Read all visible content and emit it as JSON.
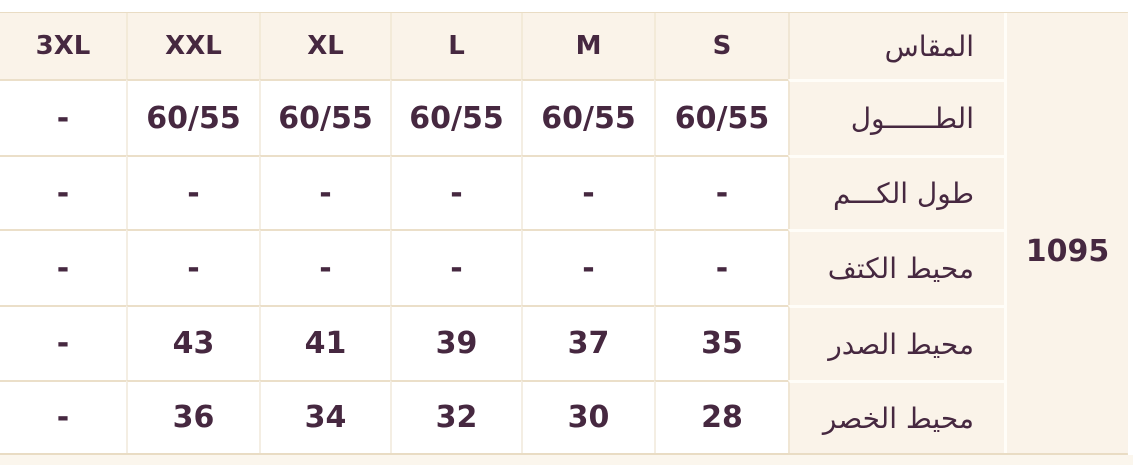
{
  "table": {
    "size_label": "المقاس",
    "sizes": [
      "3XL",
      "XXL",
      "XL",
      "L",
      "M",
      "S"
    ],
    "rows": [
      {
        "label": "الطــــــول",
        "values": [
          "-",
          "60/55",
          "60/55",
          "60/55",
          "60/55",
          "60/55"
        ]
      },
      {
        "label": "طول الكـــم",
        "values": [
          "-",
          "-",
          "-",
          "-",
          "-",
          "-"
        ]
      },
      {
        "label": "محيط الكتف",
        "values": [
          "-",
          "-",
          "-",
          "-",
          "-",
          "-"
        ]
      },
      {
        "label": "محيط الصدر",
        "values": [
          "-",
          "43",
          "41",
          "39",
          "37",
          "35"
        ]
      },
      {
        "label": "محيط الخصر",
        "values": [
          "-",
          "36",
          "34",
          "32",
          "30",
          "28"
        ]
      }
    ],
    "side_number": "1095"
  },
  "colors": {
    "text": "#462840",
    "cream": "#faf3e9",
    "cell_white": "#ffffff",
    "border_tan": "#ebdfc9"
  }
}
